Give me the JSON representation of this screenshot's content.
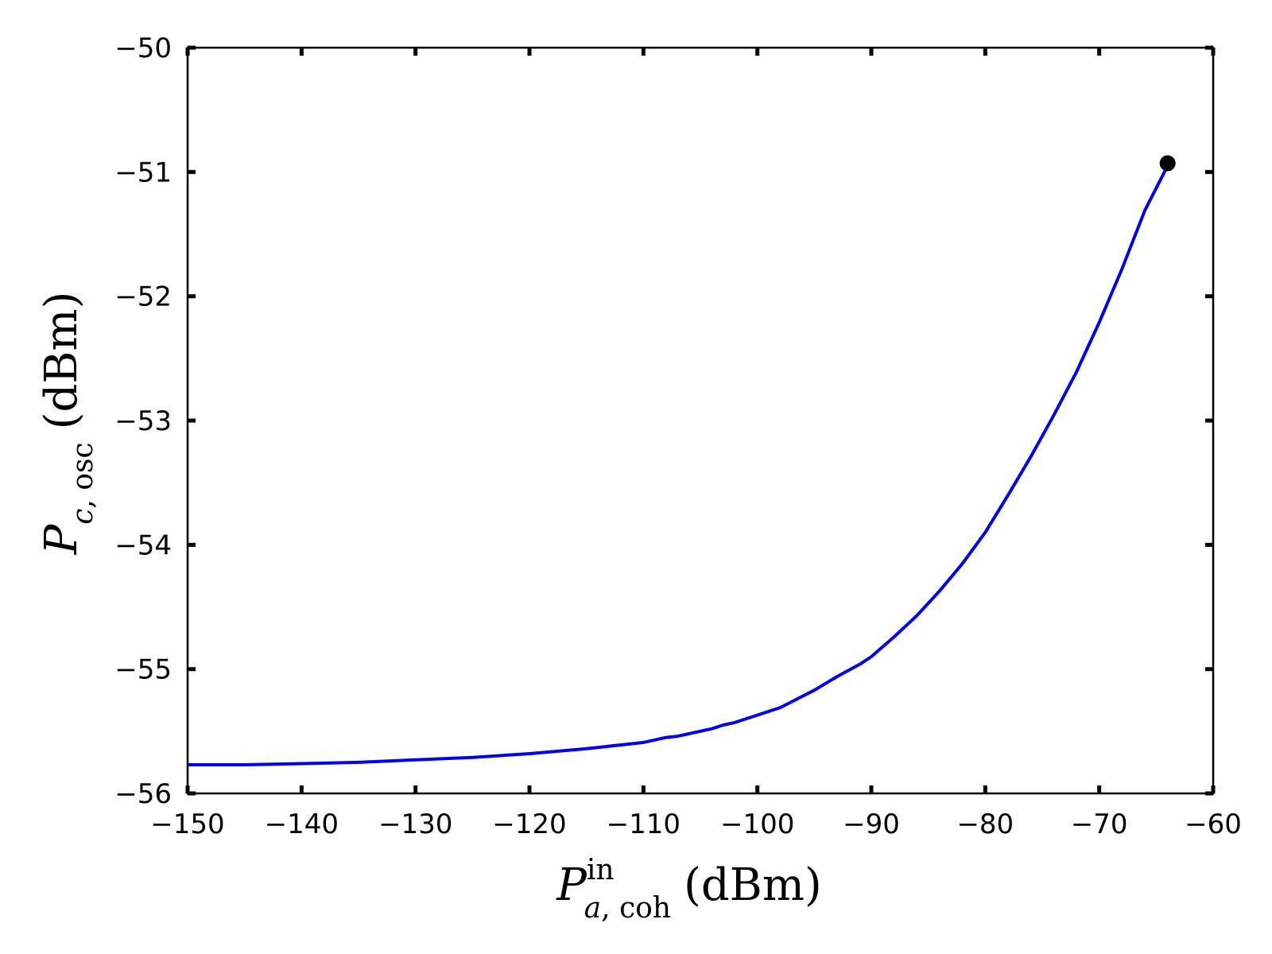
{
  "chart_data": {
    "type": "line",
    "xlabel": {
      "main": "P",
      "sup": "in",
      "sub_italic": "a",
      "sub_rest": ", coh",
      "unit": "(dBm)"
    },
    "ylabel": {
      "main": "P",
      "sub_italic": "c",
      "sub_rest": ", osc",
      "unit": "(dBm)"
    },
    "xlim": [
      -150,
      -60
    ],
    "ylim": [
      -56,
      -50
    ],
    "xticks": [
      -150,
      -140,
      -130,
      -120,
      -110,
      -100,
      -90,
      -80,
      -70,
      -60
    ],
    "xtick_labels": [
      "−150",
      "−140",
      "−130",
      "−120",
      "−110",
      "−100",
      "−90",
      "−80",
      "−70",
      "−60"
    ],
    "yticks": [
      -56,
      -55,
      -54,
      -53,
      -52,
      -51,
      -50
    ],
    "ytick_labels": [
      "−56",
      "−55",
      "−54",
      "−53",
      "−52",
      "−51",
      "−50"
    ],
    "grid": false,
    "series": [
      {
        "color": "#0000ee",
        "x": [
          -150,
          -145,
          -140,
          -135,
          -130,
          -125,
          -120,
          -115,
          -111,
          -110,
          -108,
          -107,
          -104,
          -103,
          -102,
          -100,
          -98,
          -95,
          -93,
          -91,
          -90,
          -88,
          -86,
          -84,
          -82,
          -80,
          -78,
          -76,
          -74,
          -72,
          -70,
          -68,
          -66,
          -64
        ],
        "y": [
          -55.77,
          -55.77,
          -55.76,
          -55.75,
          -55.73,
          -55.71,
          -55.68,
          -55.64,
          -55.6,
          -55.59,
          -55.55,
          -55.54,
          -55.48,
          -55.45,
          -55.43,
          -55.37,
          -55.31,
          -55.17,
          -55.06,
          -54.96,
          -54.9,
          -54.74,
          -54.57,
          -54.37,
          -54.15,
          -53.9,
          -53.6,
          -53.29,
          -52.96,
          -52.61,
          -52.21,
          -51.78,
          -51.31,
          -50.95
        ]
      }
    ],
    "markers": [
      {
        "x": -64,
        "y": -50.93,
        "color": "#000000"
      }
    ]
  }
}
